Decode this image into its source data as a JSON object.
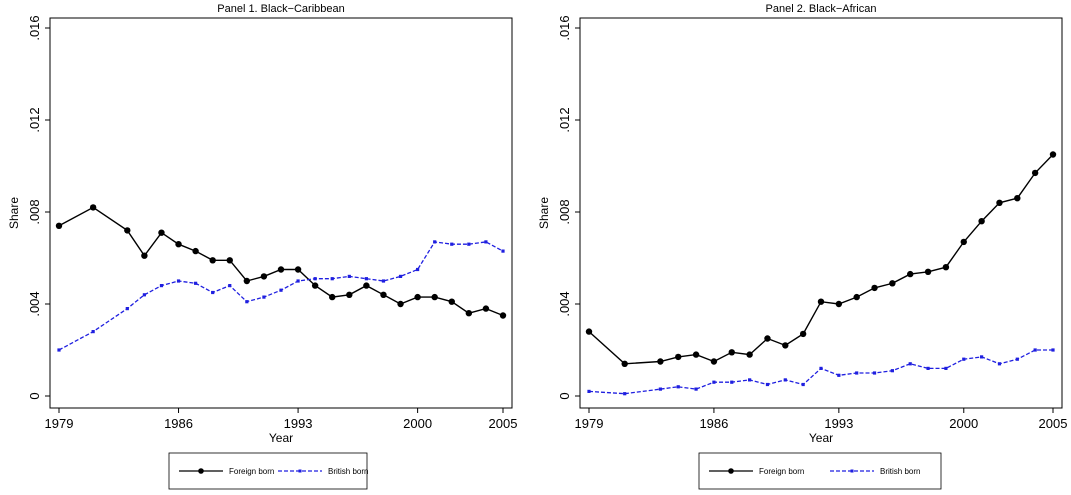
{
  "chart_data": [
    {
      "type": "line",
      "title": "Panel 1. Black−Caribbean",
      "xlabel": "Year",
      "ylabel": "Share",
      "xlim": [
        1979,
        2005
      ],
      "ylim": [
        0,
        0.016
      ],
      "x_ticks": [
        "1979",
        "1986",
        "1993",
        "2000",
        "2005"
      ],
      "y_ticks": [
        "0",
        ".004",
        ".008",
        ".012",
        ".016"
      ],
      "grid": false,
      "legend_position": "bottom",
      "series": [
        {
          "name": "Foreign born",
          "color": "#000000",
          "style": "solid",
          "marker": "circle",
          "x": [
            1979,
            1981,
            1983,
            1984,
            1985,
            1986,
            1987,
            1988,
            1989,
            1990,
            1991,
            1992,
            1993,
            1994,
            1995,
            1996,
            1997,
            1998,
            1999,
            2000,
            2001,
            2002,
            2003,
            2004,
            2005
          ],
          "y": [
            0.0074,
            0.0082,
            0.0072,
            0.0061,
            0.0071,
            0.0066,
            0.0063,
            0.0059,
            0.0059,
            0.005,
            0.0052,
            0.0055,
            0.0055,
            0.0048,
            0.0043,
            0.0044,
            0.0048,
            0.0044,
            0.004,
            0.0043,
            0.0043,
            0.0041,
            0.0036,
            0.0038,
            0.0035
          ]
        },
        {
          "name": "British born",
          "color": "#1f1fe0",
          "style": "dashed",
          "marker": "x",
          "x": [
            1979,
            1981,
            1983,
            1984,
            1985,
            1986,
            1987,
            1988,
            1989,
            1990,
            1991,
            1992,
            1993,
            1994,
            1995,
            1996,
            1997,
            1998,
            1999,
            2000,
            2001,
            2002,
            2003,
            2004,
            2005
          ],
          "y": [
            0.002,
            0.0028,
            0.0038,
            0.0044,
            0.0048,
            0.005,
            0.0049,
            0.0045,
            0.0048,
            0.0041,
            0.0043,
            0.0046,
            0.005,
            0.0051,
            0.0051,
            0.0052,
            0.0051,
            0.005,
            0.0052,
            0.0055,
            0.0067,
            0.0066,
            0.0066,
            0.0067,
            0.0063
          ]
        }
      ]
    },
    {
      "type": "line",
      "title": "Panel 2. Black−African",
      "xlabel": "Year",
      "ylabel": "Share",
      "xlim": [
        1979,
        2005
      ],
      "ylim": [
        0,
        0.016
      ],
      "x_ticks": [
        "1979",
        "1986",
        "1993",
        "2000",
        "2005"
      ],
      "y_ticks": [
        "0",
        ".004",
        ".008",
        ".012",
        ".016"
      ],
      "grid": false,
      "legend_position": "bottom",
      "series": [
        {
          "name": "Foreign born",
          "color": "#000000",
          "style": "solid",
          "marker": "circle",
          "x": [
            1979,
            1981,
            1983,
            1984,
            1985,
            1986,
            1987,
            1988,
            1989,
            1990,
            1991,
            1992,
            1993,
            1994,
            1995,
            1996,
            1997,
            1998,
            1999,
            2000,
            2001,
            2002,
            2003,
            2004,
            2005
          ],
          "y": [
            0.0028,
            0.0014,
            0.0015,
            0.0017,
            0.0018,
            0.0015,
            0.0019,
            0.0018,
            0.0025,
            0.0022,
            0.0027,
            0.0041,
            0.004,
            0.0043,
            0.0047,
            0.0049,
            0.0053,
            0.0054,
            0.0056,
            0.0067,
            0.0076,
            0.0084,
            0.0086,
            0.0097,
            0.0105
          ]
        },
        {
          "name": "British born",
          "color": "#1f1fe0",
          "style": "dashed",
          "marker": "x",
          "x": [
            1979,
            1981,
            1983,
            1984,
            1985,
            1986,
            1987,
            1988,
            1989,
            1990,
            1991,
            1992,
            1993,
            1994,
            1995,
            1996,
            1997,
            1998,
            1999,
            2000,
            2001,
            2002,
            2003,
            2004,
            2005
          ],
          "y": [
            0.0002,
            0.0001,
            0.0003,
            0.0004,
            0.0003,
            0.0006,
            0.0006,
            0.0007,
            0.0005,
            0.0007,
            0.0005,
            0.0012,
            0.0009,
            0.001,
            0.001,
            0.0011,
            0.0014,
            0.0012,
            0.0012,
            0.0016,
            0.0017,
            0.0014,
            0.0016,
            0.002,
            0.002
          ]
        }
      ]
    }
  ]
}
